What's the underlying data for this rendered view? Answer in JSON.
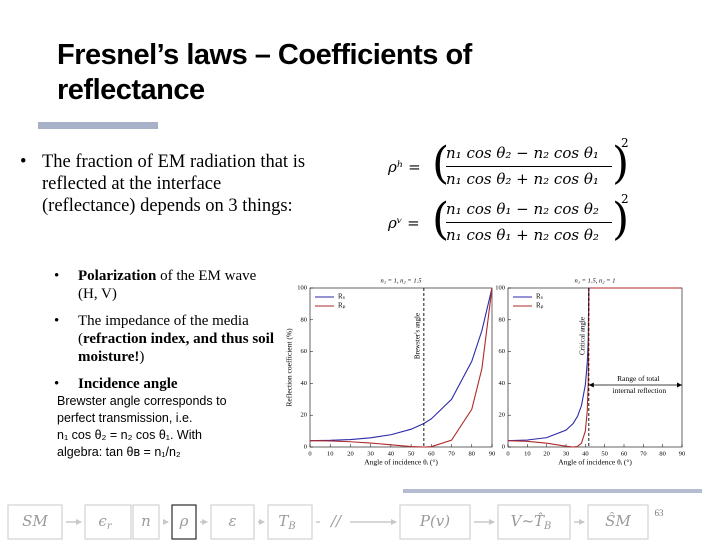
{
  "slide": {
    "title": [
      "Fresnel’s laws – Coefficients of",
      "reflectance"
    ],
    "bullet": "The fraction of EM radiation that is reflected at the interface (reflectance) depends on 3 things:",
    "sub_bullets": [
      [
        {
          "text": "Polarization",
          "bold": true
        },
        {
          "text": " of the EM wave (H, V)"
        }
      ],
      [
        {
          "text": "The impedance of the media ("
        },
        {
          "text": "refraction index, and thus soil moisture!",
          "bold": true
        },
        {
          "text": ")"
        }
      ],
      [
        {
          "text": "Incidence angle",
          "bold": true
        }
      ]
    ],
    "note": [
      "Brewster angle corresponds to",
      "perfect transmission, i.e.",
      "n₁ cos θ₂ = n₂ cos θ₁. With",
      "algebra: tan θʙ = n₁/n₂"
    ],
    "equations": [
      {
        "lhs": "ρʰ =",
        "numerator": "n₁ cos θ₂ − n₂ cos θ₁",
        "denominator": "n₁ cos θ₂ + n₂ cos θ₁",
        "exponent": "2"
      },
      {
        "lhs": "ρᵛ =",
        "numerator": "n₁ cos θ₁ − n₂ cos θ₂",
        "denominator": "n₁ cos θ₁ + n₂ cos θ₂",
        "exponent": "2"
      }
    ],
    "flow": [
      {
        "main": "SM"
      },
      {
        "main": "ϵ",
        "sub": "r"
      },
      {
        "main": "n"
      },
      {
        "main": "ρ",
        "active": true
      },
      {
        "main": "ε"
      },
      {
        "main": "T",
        "sub": "B"
      },
      {
        "main": "//"
      },
      {
        "main": "P(v)"
      },
      {
        "main": "V~T̂",
        "sub": "B"
      },
      {
        "main": "ŜM"
      }
    ],
    "page_number": "63"
  },
  "chart_data": [
    {
      "type": "line",
      "title": "n₁ = 1,  n₂ = 1.5",
      "x_label": "Angle of incidence θᵢ (°)",
      "y_label": "Reflection coefficient (%)",
      "xlim": [
        0,
        90
      ],
      "ylim": [
        0,
        100
      ],
      "xticks": [
        0,
        10,
        20,
        30,
        40,
        50,
        60,
        70,
        80,
        90
      ],
      "yticks": [
        0,
        20,
        40,
        60,
        80,
        100
      ],
      "x": [
        0,
        10,
        20,
        30,
        40,
        50,
        56.3,
        60,
        70,
        80,
        85,
        90
      ],
      "series": [
        {
          "name": "Rₛ",
          "color": "#2a2aa8",
          "values": [
            4,
            4.2,
            4.7,
            5.8,
            7.7,
            11.2,
            14.8,
            17.7,
            30,
            53.9,
            73.2,
            100
          ]
        },
        {
          "name": "Rₚ",
          "color": "#b02a2a",
          "values": [
            4,
            3.8,
            3.3,
            2.5,
            1.4,
            0.3,
            0,
            0.2,
            4.3,
            23.7,
            49.3,
            100
          ]
        }
      ],
      "annotations": [
        {
          "text": "Brewster's angle",
          "x": 56.3
        }
      ]
    },
    {
      "type": "line",
      "title": "n₁ = 1.5,  n₂ = 1",
      "x_label": "Angle of incidence θᵢ (°)",
      "xlim": [
        0,
        90
      ],
      "ylim": [
        0,
        100
      ],
      "xticks": [
        0,
        10,
        20,
        30,
        40,
        50,
        60,
        70,
        80,
        90
      ],
      "yticks": [
        0,
        20,
        40,
        60,
        80,
        100
      ],
      "x": [
        0,
        10,
        20,
        30,
        33.7,
        36,
        38,
        40,
        41,
        41.5,
        41.8,
        50,
        60,
        70,
        80,
        90
      ],
      "series": [
        {
          "name": "Rₛ",
          "color": "#2a2aa8",
          "values": [
            4,
            4.4,
            5.9,
            10.6,
            14.8,
            19.4,
            26,
            39.1,
            53.1,
            67.2,
            100,
            100,
            100,
            100,
            100,
            100
          ]
        },
        {
          "name": "Rₚ",
          "color": "#b02a2a",
          "values": [
            4,
            3.6,
            2.4,
            0.5,
            0,
            0.4,
            2.4,
            10,
            22.8,
            40.4,
            100,
            100,
            100,
            100,
            100,
            100
          ]
        }
      ],
      "annotations": [
        {
          "text": "Critical angle",
          "x": 41.8
        },
        {
          "text": "Range of total internal reflection",
          "x_range": [
            41.8,
            90
          ]
        }
      ]
    }
  ]
}
